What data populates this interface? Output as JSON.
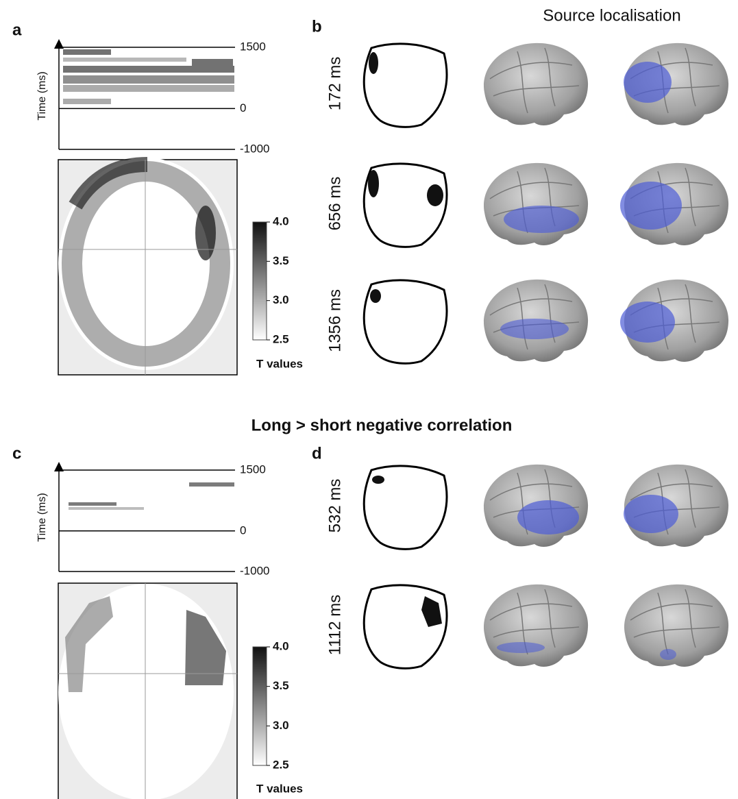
{
  "panel_a": {
    "label": "a",
    "time_axis": {
      "title": "Time (ms)",
      "lim": [
        -1000,
        1500
      ],
      "ticks": [
        1500,
        0,
        -1000
      ]
    },
    "colorbar": {
      "title": "T values",
      "lim": [
        2.5,
        4
      ],
      "ticks": [
        {
          "value": 4,
          "label": "4.0"
        },
        3.5,
        {
          "value": 3,
          "label": "3.0"
        },
        2.5
      ]
    }
  },
  "panel_b": {
    "label": "b",
    "title": "Source localisation",
    "latencies": [
      "172 ms",
      "656 ms",
      "1356 ms"
    ]
  },
  "section_title": "Long > short negative correlation",
  "panel_c": {
    "label": "c",
    "time_axis": {
      "title": "Time (ms)",
      "lim": [
        -1000,
        1500
      ],
      "ticks": [
        1500,
        0,
        -1000
      ]
    },
    "colorbar": {
      "title": "T values",
      "lim": [
        2.5,
        4
      ],
      "ticks": [
        {
          "value": 4,
          "label": "4.0"
        },
        3.5,
        {
          "value": 3,
          "label": "3.0"
        },
        2.5
      ]
    }
  },
  "panel_d": {
    "label": "d",
    "latencies": [
      "532 ms",
      "1112 ms"
    ]
  }
}
